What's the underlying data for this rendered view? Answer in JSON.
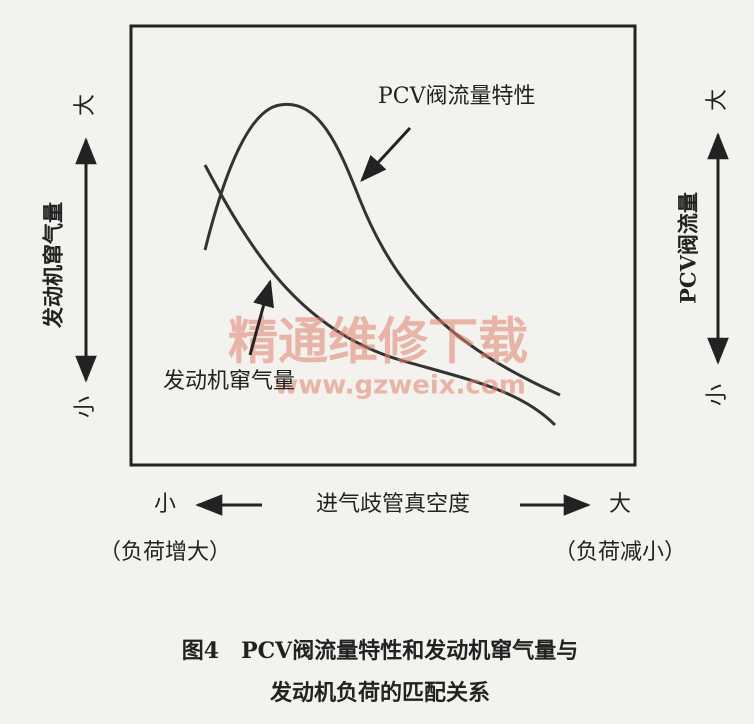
{
  "diagram": {
    "annotations": {
      "pcv_curve": "PCV阀流量特性",
      "blowby_curve": "发动机窜气量"
    },
    "left_axis": {
      "label": "发动机窜气量",
      "top": "大",
      "bottom": "小"
    },
    "right_axis": {
      "label": "PCV阀流量",
      "top": "大",
      "bottom": "小"
    },
    "bottom_axis": {
      "label": "进气歧管真空度",
      "left": "小",
      "right": "大",
      "left_note": "（负荷增大）",
      "right_note": "（负荷减小）"
    },
    "caption": [
      "图4　PCV阀流量特性和发动机窜气量与",
      "发动机负荷的匹配关系"
    ],
    "watermark": {
      "title": "精通维修下载",
      "url": "www.gzweix.com"
    }
  }
}
